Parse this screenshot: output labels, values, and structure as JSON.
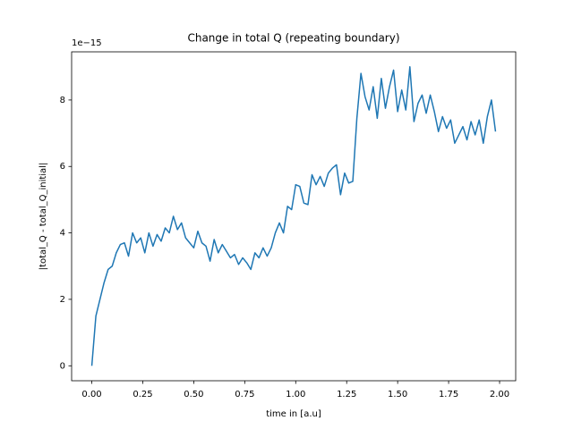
{
  "chart_data": {
    "type": "line",
    "title": "Change in total Q (repeating boundary)",
    "x_label": "time in [a.u]",
    "y_label": "|total_Q - total_Q_initial|",
    "y_offset_label": "1e−15",
    "xlim": [
      -0.099,
      2.079
    ],
    "ylim": [
      -0.45,
      9.45
    ],
    "xticks": [
      {
        "value": 0,
        "label": "0.00"
      },
      {
        "value": 0.25,
        "label": "0.25"
      },
      {
        "value": 0.5,
        "label": "0.50"
      },
      {
        "value": 0.75,
        "label": "0.75"
      },
      {
        "value": 1,
        "label": "1.00"
      },
      {
        "value": 1.25,
        "label": "1.25"
      },
      {
        "value": 1.5,
        "label": "1.50"
      },
      {
        "value": 1.75,
        "label": "1.75"
      },
      {
        "value": 2,
        "label": "2.00"
      }
    ],
    "yticks": [
      0,
      2,
      4,
      6,
      8
    ],
    "x": [
      0.0,
      0.02,
      0.04,
      0.06,
      0.08,
      0.1,
      0.12,
      0.14,
      0.16,
      0.18,
      0.2,
      0.22,
      0.24,
      0.26,
      0.28,
      0.3,
      0.32,
      0.34,
      0.36,
      0.38,
      0.4,
      0.42,
      0.44,
      0.46,
      0.48,
      0.5,
      0.52,
      0.54,
      0.56,
      0.58,
      0.6,
      0.62,
      0.64,
      0.66,
      0.68,
      0.7,
      0.72,
      0.74,
      0.76,
      0.78,
      0.8,
      0.82,
      0.84,
      0.86,
      0.88,
      0.9,
      0.92,
      0.94,
      0.96,
      0.98,
      1.0,
      1.02,
      1.04,
      1.06,
      1.08,
      1.1,
      1.12,
      1.14,
      1.16,
      1.18,
      1.2,
      1.22,
      1.24,
      1.26,
      1.28,
      1.3,
      1.32,
      1.34,
      1.36,
      1.38,
      1.4,
      1.42,
      1.44,
      1.46,
      1.48,
      1.5,
      1.52,
      1.54,
      1.56,
      1.58,
      1.6,
      1.62,
      1.64,
      1.66,
      1.68,
      1.7,
      1.72,
      1.74,
      1.76,
      1.78,
      1.8,
      1.82,
      1.84,
      1.86,
      1.88,
      1.9,
      1.92,
      1.94,
      1.96,
      1.98
    ],
    "series": [
      {
        "color": "#1f77b4",
        "values": [
          0,
          1.5,
          2.0,
          2.5,
          2.9,
          3.0,
          3.4,
          3.65,
          3.7,
          3.3,
          4.0,
          3.7,
          3.85,
          3.4,
          4.0,
          3.6,
          3.95,
          3.75,
          4.15,
          4.0,
          4.5,
          4.1,
          4.3,
          3.85,
          3.7,
          3.55,
          4.05,
          3.7,
          3.6,
          3.15,
          3.8,
          3.4,
          3.65,
          3.45,
          3.25,
          3.35,
          3.05,
          3.25,
          3.1,
          2.9,
          3.4,
          3.25,
          3.55,
          3.3,
          3.55,
          4.0,
          4.3,
          4.0,
          4.8,
          4.7,
          5.45,
          5.4,
          4.9,
          4.85,
          5.75,
          5.45,
          5.7,
          5.4,
          5.8,
          5.95,
          6.05,
          5.15,
          5.8,
          5.5,
          5.55,
          7.45,
          8.8,
          8.1,
          7.7,
          8.4,
          7.45,
          8.65,
          7.75,
          8.4,
          8.9,
          7.65,
          8.3,
          7.7,
          9.0,
          7.35,
          7.9,
          8.15,
          7.6,
          8.15,
          7.65,
          7.05,
          7.5,
          7.15,
          7.4,
          6.7,
          6.95,
          7.2,
          6.8,
          7.35,
          6.95,
          7.4,
          6.7,
          7.5,
          8.0,
          7.05
        ]
      }
    ]
  }
}
